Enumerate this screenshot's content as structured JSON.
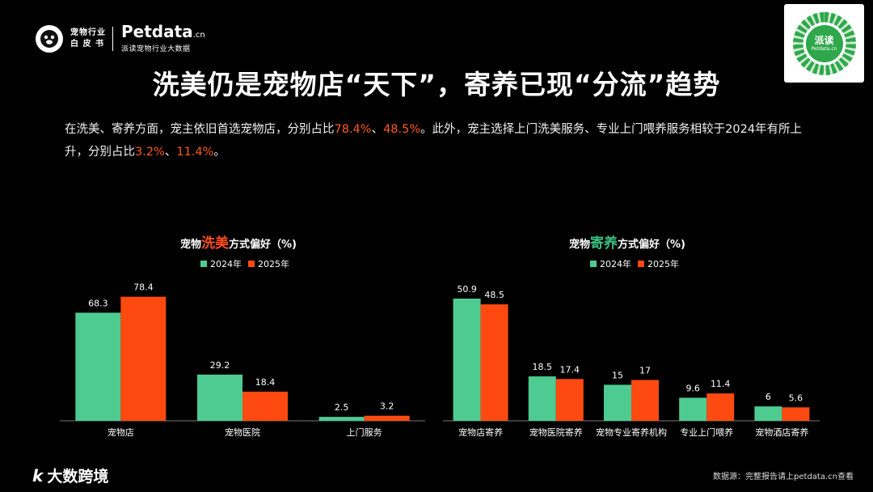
{
  "header": {
    "logo_line1": "宠物行业",
    "logo_line2": "白 皮 书",
    "brand": "Petdata",
    "brand_suffix": ".cn",
    "brand_sub": "派读宠物行业大数据",
    "qr_label": "派读",
    "qr_sub": "Petdata.cn"
  },
  "title": "洗美仍是宠物店“天下”，寄养已现“分流”趋势",
  "desc": {
    "p1": "在洗美、寄养方面，宠主依旧首选宠物店，分别占比",
    "v1": "78.4%",
    "p2": "、",
    "v2": "48.5%",
    "p3": "。此外，宠主选择上门洗美服务、专业上门喂养服务相较于2024年有所上升，分别占比",
    "v3": "3.2%",
    "p4": "、",
    "v4": "11.4%",
    "p5": "。"
  },
  "colors": {
    "y2024": "#4ecb91",
    "y2025": "#fe4a10",
    "highlight": "#fe5a1c"
  },
  "chart_data": [
    {
      "type": "bar",
      "title_prefix": "宠物",
      "title_accent": "洗美",
      "title_suffix": "方式偏好（%)",
      "categories": [
        "宠物店",
        "宠物医院",
        "上门服务"
      ],
      "series": [
        {
          "name": "2024年",
          "values": [
            68.3,
            29.2,
            2.5
          ]
        },
        {
          "name": "2025年",
          "values": [
            78.4,
            18.4,
            3.2
          ]
        }
      ],
      "ylim": [
        0,
        90
      ],
      "grid": false,
      "legend": "top-center"
    },
    {
      "type": "bar",
      "title_prefix": "宠物",
      "title_accent": "寄养",
      "title_suffix": "方式偏好（%)",
      "categories": [
        "宠物店寄养",
        "宠物医院寄养",
        "宠物专业寄养机构",
        "专业上门喂养",
        "宠物酒店寄养"
      ],
      "series": [
        {
          "name": "2024年",
          "values": [
            50.9,
            18.5,
            15,
            9.6,
            6
          ]
        },
        {
          "name": "2025年",
          "values": [
            48.5,
            17.4,
            17,
            11.4,
            5.6
          ]
        }
      ],
      "ylim": [
        0,
        60
      ],
      "grid": false,
      "legend": "top-center"
    }
  ],
  "footer": {
    "logo": "大数跨境",
    "source": "数据源：完整报告请上petdata.cn查看"
  }
}
